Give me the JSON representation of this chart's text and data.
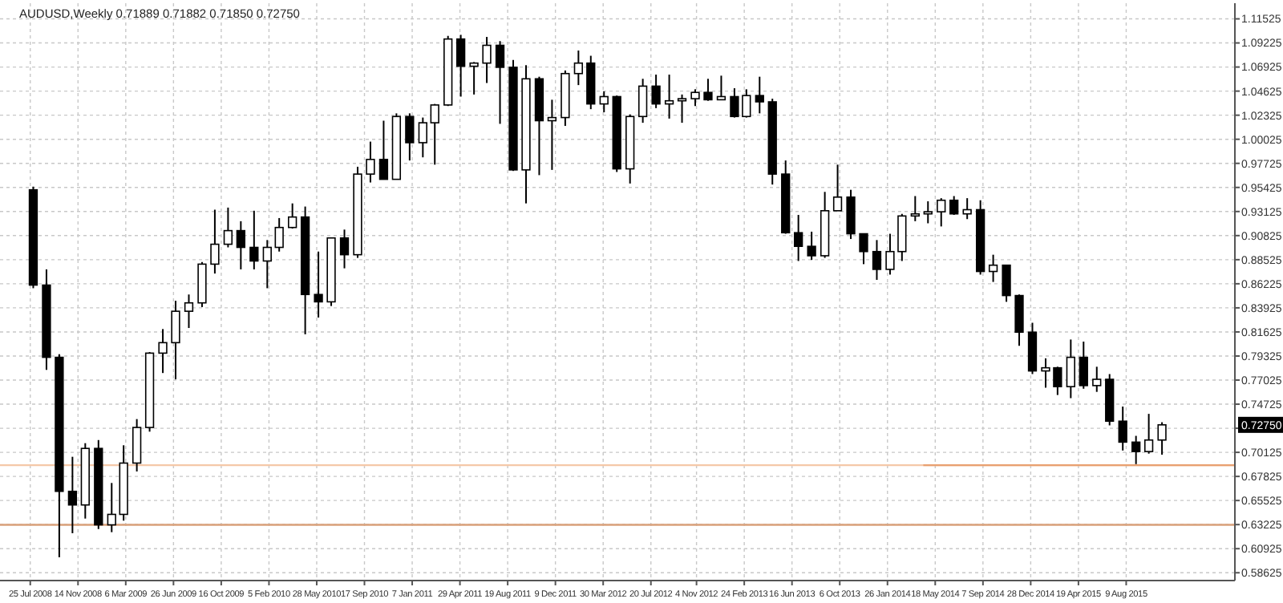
{
  "chart_data": {
    "type": "candlestick",
    "title": "AUDUSD,Weekly  0.71889 0.71882 0.71850 0.72750",
    "color": "#000000",
    "x": [
      "2008-08",
      "2008-09",
      "2008-10",
      "2008-11",
      "2008-12",
      "2009-01",
      "2009-02",
      "2009-03",
      "2009-04",
      "2009-05",
      "2009-06",
      "2009-07",
      "2009-08",
      "2009-09",
      "2009-10",
      "2009-11",
      "2009-12",
      "2010-01",
      "2010-02",
      "2010-03",
      "2010-04",
      "2010-05",
      "2010-06",
      "2010-07",
      "2010-08",
      "2010-09",
      "2010-10",
      "2010-11",
      "2010-12",
      "2011-01",
      "2011-02",
      "2011-03",
      "2011-04",
      "2011-05",
      "2011-06",
      "2011-07",
      "2011-08",
      "2011-09",
      "2011-10",
      "2011-11",
      "2011-12",
      "2012-01",
      "2012-02",
      "2012-03",
      "2012-04",
      "2012-05",
      "2012-06",
      "2012-07",
      "2012-08",
      "2012-09",
      "2012-10",
      "2012-11",
      "2012-12",
      "2013-01",
      "2013-02",
      "2013-03",
      "2013-04",
      "2013-05",
      "2013-06",
      "2013-07",
      "2013-08",
      "2013-09",
      "2013-10",
      "2013-11",
      "2013-12",
      "2014-01",
      "2014-02",
      "2014-03",
      "2014-04",
      "2014-05",
      "2014-06",
      "2014-07",
      "2014-08",
      "2014-09",
      "2014-10",
      "2014-11",
      "2014-12",
      "2015-01",
      "2015-02",
      "2015-03",
      "2015-04",
      "2015-05",
      "2015-06",
      "2015-07",
      "2015-08",
      "2015-09",
      "2015-10",
      "2015-11"
    ],
    "ohlc": [
      [
        0.952,
        0.955,
        0.858,
        0.861
      ],
      [
        0.861,
        0.876,
        0.78,
        0.792
      ],
      [
        0.792,
        0.795,
        0.601,
        0.664
      ],
      [
        0.664,
        0.697,
        0.624,
        0.651
      ],
      [
        0.651,
        0.71,
        0.638,
        0.705
      ],
      [
        0.705,
        0.713,
        0.628,
        0.632
      ],
      [
        0.632,
        0.672,
        0.625,
        0.642
      ],
      [
        0.642,
        0.708,
        0.636,
        0.691
      ],
      [
        0.691,
        0.733,
        0.683,
        0.725
      ],
      [
        0.725,
        0.797,
        0.721,
        0.796
      ],
      [
        0.796,
        0.819,
        0.777,
        0.806
      ],
      [
        0.806,
        0.846,
        0.771,
        0.836
      ],
      [
        0.836,
        0.852,
        0.82,
        0.844
      ],
      [
        0.844,
        0.883,
        0.84,
        0.881
      ],
      [
        0.881,
        0.933,
        0.872,
        0.9
      ],
      [
        0.9,
        0.935,
        0.897,
        0.913
      ],
      [
        0.913,
        0.922,
        0.876,
        0.897
      ],
      [
        0.897,
        0.932,
        0.876,
        0.884
      ],
      [
        0.884,
        0.904,
        0.858,
        0.897
      ],
      [
        0.897,
        0.925,
        0.893,
        0.916
      ],
      [
        0.916,
        0.939,
        0.915,
        0.926
      ],
      [
        0.926,
        0.936,
        0.814,
        0.852
      ],
      [
        0.852,
        0.893,
        0.83,
        0.845
      ],
      [
        0.845,
        0.906,
        0.841,
        0.906
      ],
      [
        0.906,
        0.914,
        0.877,
        0.89
      ],
      [
        0.89,
        0.974,
        0.887,
        0.967
      ],
      [
        0.967,
        0.998,
        0.959,
        0.981
      ],
      [
        0.981,
        1.018,
        0.962,
        0.962
      ],
      [
        0.962,
        1.025,
        0.962,
        1.022
      ],
      [
        1.022,
        1.025,
        0.98,
        0.997
      ],
      [
        0.997,
        1.021,
        0.983,
        1.016
      ],
      [
        1.016,
        1.034,
        0.976,
        1.033
      ],
      [
        1.033,
        1.099,
        1.032,
        1.096
      ],
      [
        1.096,
        1.1,
        1.041,
        1.07
      ],
      [
        1.07,
        1.074,
        1.043,
        1.073
      ],
      [
        1.073,
        1.098,
        1.054,
        1.09
      ],
      [
        1.09,
        1.094,
        1.015,
        1.069
      ],
      [
        1.069,
        1.076,
        0.97,
        0.971
      ],
      [
        0.971,
        1.071,
        0.939,
        1.058
      ],
      [
        1.058,
        1.06,
        0.966,
        1.018
      ],
      [
        1.018,
        1.038,
        0.971,
        1.021
      ],
      [
        1.021,
        1.066,
        1.013,
        1.063
      ],
      [
        1.063,
        1.085,
        1.052,
        1.073
      ],
      [
        1.073,
        1.08,
        1.029,
        1.034
      ],
      [
        1.034,
        1.046,
        1.026,
        1.041
      ],
      [
        1.041,
        1.042,
        0.969,
        0.972
      ],
      [
        0.972,
        1.024,
        0.958,
        1.022
      ],
      [
        1.022,
        1.058,
        1.016,
        1.051
      ],
      [
        1.051,
        1.062,
        1.03,
        1.034
      ],
      [
        1.034,
        1.062,
        1.02,
        1.037
      ],
      [
        1.037,
        1.043,
        1.016,
        1.039
      ],
      [
        1.039,
        1.048,
        1.032,
        1.045
      ],
      [
        1.045,
        1.058,
        1.037,
        1.038
      ],
      [
        1.038,
        1.061,
        1.038,
        1.041
      ],
      [
        1.041,
        1.049,
        1.021,
        1.022
      ],
      [
        1.022,
        1.048,
        1.021,
        1.042
      ],
      [
        1.042,
        1.06,
        1.025,
        1.036
      ],
      [
        1.036,
        1.039,
        0.957,
        0.967
      ],
      [
        0.967,
        0.98,
        0.91,
        0.911
      ],
      [
        0.911,
        0.928,
        0.884,
        0.898
      ],
      [
        0.898,
        0.912,
        0.885,
        0.889
      ],
      [
        0.889,
        0.95,
        0.887,
        0.932
      ],
      [
        0.932,
        0.976,
        0.932,
        0.945
      ],
      [
        0.945,
        0.952,
        0.905,
        0.91
      ],
      [
        0.91,
        0.91,
        0.881,
        0.893
      ],
      [
        0.893,
        0.904,
        0.866,
        0.876
      ],
      [
        0.876,
        0.91,
        0.871,
        0.893
      ],
      [
        0.893,
        0.929,
        0.884,
        0.927
      ],
      [
        0.927,
        0.946,
        0.922,
        0.929
      ],
      [
        0.929,
        0.941,
        0.92,
        0.931
      ],
      [
        0.931,
        0.944,
        0.917,
        0.942
      ],
      [
        0.942,
        0.946,
        0.928,
        0.929
      ],
      [
        0.929,
        0.944,
        0.924,
        0.933
      ],
      [
        0.933,
        0.942,
        0.871,
        0.874
      ],
      [
        0.874,
        0.89,
        0.864,
        0.88
      ],
      [
        0.88,
        0.88,
        0.845,
        0.851
      ],
      [
        0.851,
        0.852,
        0.803,
        0.816
      ],
      [
        0.816,
        0.825,
        0.776,
        0.779
      ],
      [
        0.779,
        0.791,
        0.763,
        0.782
      ],
      [
        0.782,
        0.783,
        0.756,
        0.764
      ],
      [
        0.764,
        0.809,
        0.753,
        0.792
      ],
      [
        0.792,
        0.807,
        0.762,
        0.765
      ],
      [
        0.765,
        0.783,
        0.759,
        0.771
      ],
      [
        0.771,
        0.776,
        0.727,
        0.731
      ],
      [
        0.731,
        0.745,
        0.703,
        0.711
      ],
      [
        0.711,
        0.717,
        0.69,
        0.702
      ],
      [
        0.702,
        0.738,
        0.7,
        0.713
      ],
      [
        0.713,
        0.73,
        0.699,
        0.7275
      ]
    ],
    "series": [
      {
        "type": "line",
        "color": "#e8a070",
        "x": [
          "2014-04-20",
          "2016-04-20"
        ],
        "values": [
          0.689,
          0.689
        ]
      }
    ],
    "ref_lines": [
      {
        "axis": "y",
        "value": 0.689,
        "label": null,
        "color": "#f5c8a8"
      },
      {
        "axis": "y",
        "value": 0.632,
        "label": null,
        "color": "#d9a07a"
      }
    ],
    "annotations": [
      {
        "text": "0.72750",
        "y": 0.7275
      }
    ],
    "xlim": [
      "2008-05-15",
      "2016-04-20"
    ],
    "ylim": [
      0.5788,
      1.1302
    ],
    "xticks": [
      {
        "value": "2008-07-25",
        "label": "25 Jul 2008"
      },
      {
        "value": "2008-11-14",
        "label": "14 Nov 2008"
      },
      {
        "value": "2009-03-06",
        "label": "6 Mar 2009"
      },
      {
        "value": "2009-06-26",
        "label": "26 Jun 2009"
      },
      {
        "value": "2009-10-16",
        "label": "16 Oct 2009"
      },
      {
        "value": "2010-02-05",
        "label": "5 Feb 2010"
      },
      {
        "value": "2010-05-28",
        "label": "28 May 2010"
      },
      {
        "value": "2010-09-17",
        "label": "17 Sep 2010"
      },
      {
        "value": "2011-01-07",
        "label": "7 Jan 2011"
      },
      {
        "value": "2011-04-29",
        "label": "29 Apr 2011"
      },
      {
        "value": "2011-08-19",
        "label": "19 Aug 2011"
      },
      {
        "value": "2011-12-09",
        "label": "9 Dec 2011"
      },
      {
        "value": "2012-03-30",
        "label": "30 Mar 2012"
      },
      {
        "value": "2012-07-20",
        "label": "20 Jul 2012"
      },
      {
        "value": "2012-11-04",
        "label": "4 Nov 2012"
      },
      {
        "value": "2013-02-24",
        "label": "24 Feb 2013"
      },
      {
        "value": "2013-06-16",
        "label": "16 Jun 2013"
      },
      {
        "value": "2013-10-06",
        "label": "6 Oct 2013"
      },
      {
        "value": "2014-01-26",
        "label": "26 Jan 2014"
      },
      {
        "value": "2014-05-18",
        "label": "18 May 2014"
      },
      {
        "value": "2014-09-07",
        "label": "7 Sep 2014"
      },
      {
        "value": "2014-12-28",
        "label": "28 Dec 2014"
      },
      {
        "value": "2015-04-19",
        "label": "19 Apr 2015"
      },
      {
        "value": "2015-08-09",
        "label": "9 Aug 2015"
      }
    ],
    "yticks": [
      {
        "value": 0.58625,
        "label": "0.58625"
      },
      {
        "value": 0.60925,
        "label": "0.60925"
      },
      {
        "value": 0.63225,
        "label": "0.63225"
      },
      {
        "value": 0.65525,
        "label": "0.65525"
      },
      {
        "value": 0.67825,
        "label": "0.67825"
      },
      {
        "value": 0.70125,
        "label": "0.70125"
      },
      {
        "value": 0.72425,
        "label": null
      },
      {
        "value": 0.74725,
        "label": "0.74725"
      },
      {
        "value": 0.77025,
        "label": "0.77025"
      },
      {
        "value": 0.79325,
        "label": "0.79325"
      },
      {
        "value": 0.81625,
        "label": "0.81625"
      },
      {
        "value": 0.83925,
        "label": "0.83925"
      },
      {
        "value": 0.86225,
        "label": "0.86225"
      },
      {
        "value": 0.88525,
        "label": "0.88525"
      },
      {
        "value": 0.90825,
        "label": "0.90825"
      },
      {
        "value": 0.93125,
        "label": "0.93125"
      },
      {
        "value": 0.95425,
        "label": "0.95425"
      },
      {
        "value": 0.97725,
        "label": "0.97725"
      },
      {
        "value": 1.00025,
        "label": "1.00025"
      },
      {
        "value": 1.02325,
        "label": "1.02325"
      },
      {
        "value": 1.04625,
        "label": "1.04625"
      },
      {
        "value": 1.06925,
        "label": "1.06925"
      },
      {
        "value": 1.09225,
        "label": "1.09225"
      },
      {
        "value": 1.11525,
        "label": "1.11525"
      }
    ],
    "grid": true
  }
}
